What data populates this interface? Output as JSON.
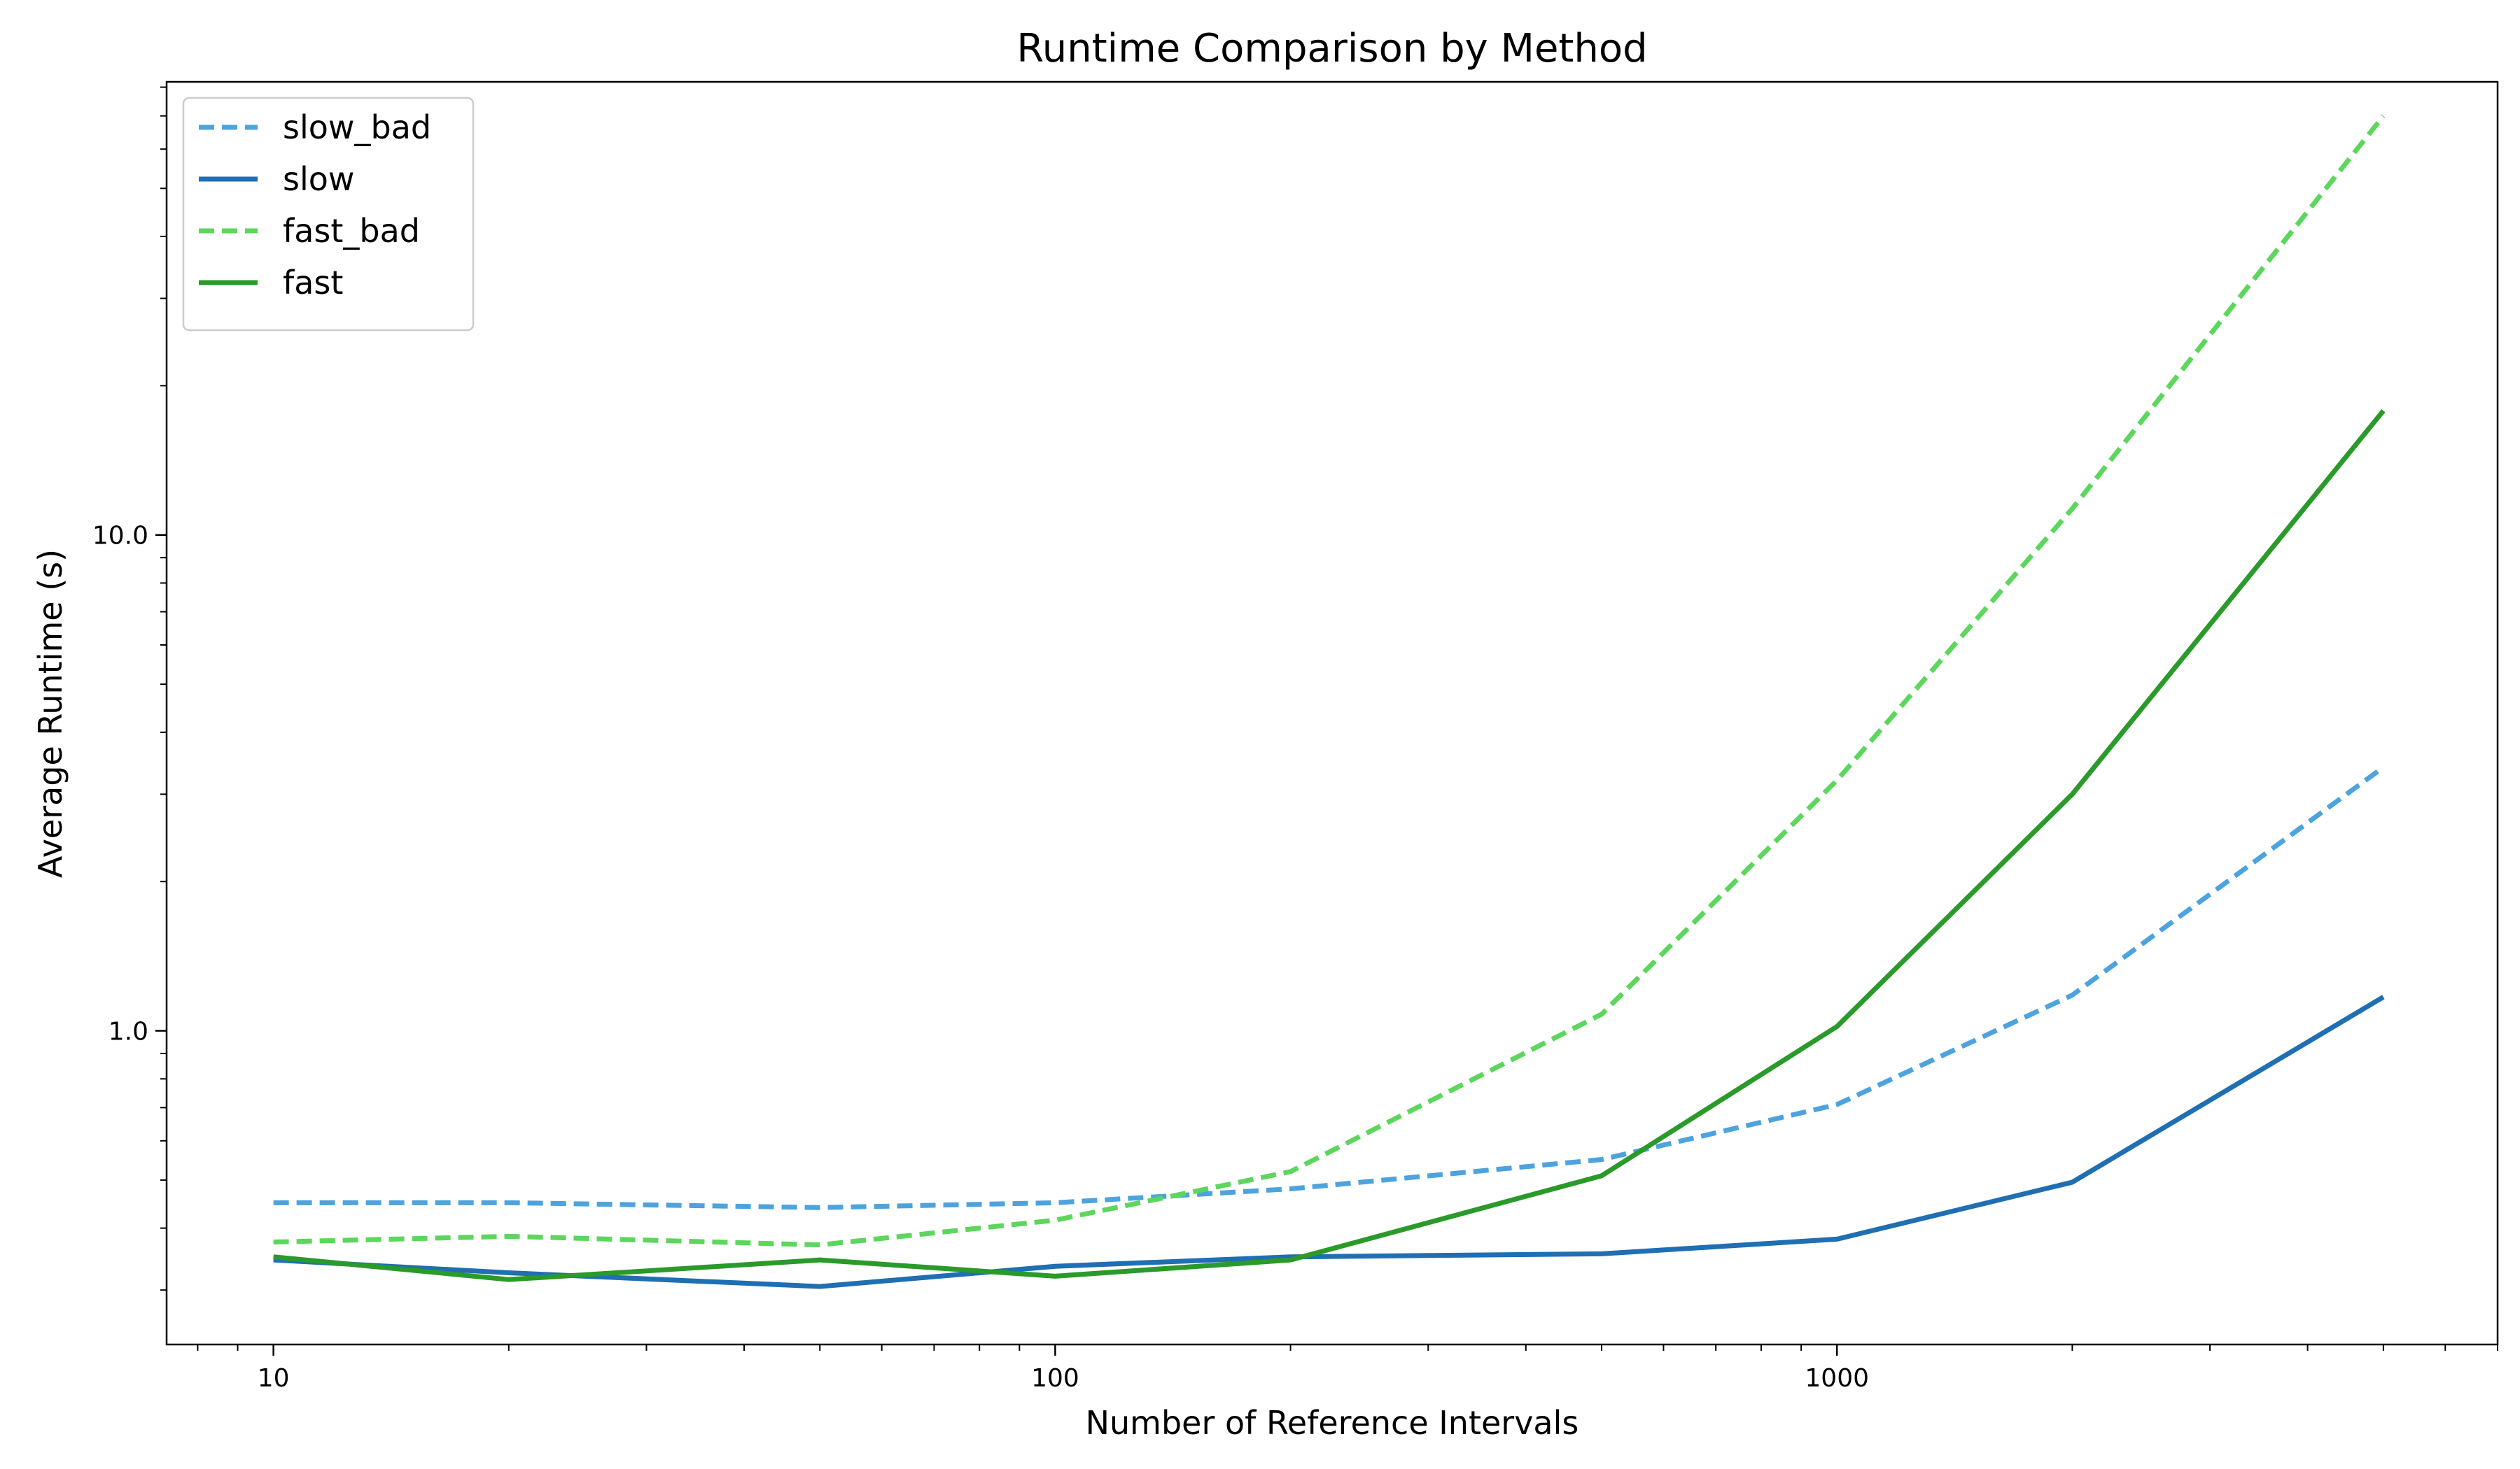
{
  "chart_data": {
    "type": "line",
    "title": "Runtime Comparison by Method",
    "xlabel": "Number of Reference Intervals",
    "ylabel": "Average Runtime (s)",
    "xscale": "log",
    "yscale": "log",
    "xlim": [
      7.3,
      7000
    ],
    "ylim": [
      0.233,
      82
    ],
    "x_ticks": [
      10,
      100,
      1000
    ],
    "x_tick_labels": [
      "10",
      "100",
      "1000"
    ],
    "y_ticks": [
      1.0,
      10.0
    ],
    "y_tick_labels": [
      "1.0",
      "10.0"
    ],
    "grid": false,
    "legend_position": "upper-left",
    "x": [
      10,
      20,
      50,
      100,
      200,
      500,
      1000,
      2000,
      5000
    ],
    "series": [
      {
        "name": "slow_bad",
        "color": "#4da3de",
        "dash": "dashed",
        "values": [
          0.45,
          0.45,
          0.44,
          0.45,
          0.48,
          0.55,
          0.71,
          1.18,
          3.4
        ]
      },
      {
        "name": "slow",
        "color": "#1f6fb2",
        "dash": "solid",
        "values": [
          0.345,
          0.325,
          0.305,
          0.335,
          0.35,
          0.355,
          0.38,
          0.495,
          1.17
        ]
      },
      {
        "name": "fast_bad",
        "color": "#5cd65c",
        "dash": "dashed",
        "values": [
          0.375,
          0.385,
          0.37,
          0.415,
          0.52,
          1.08,
          3.2,
          11.3,
          70
        ]
      },
      {
        "name": "fast",
        "color": "#2a9a2a",
        "dash": "solid",
        "values": [
          0.35,
          0.315,
          0.345,
          0.32,
          0.345,
          0.51,
          1.02,
          3.0,
          17.8
        ]
      }
    ]
  }
}
